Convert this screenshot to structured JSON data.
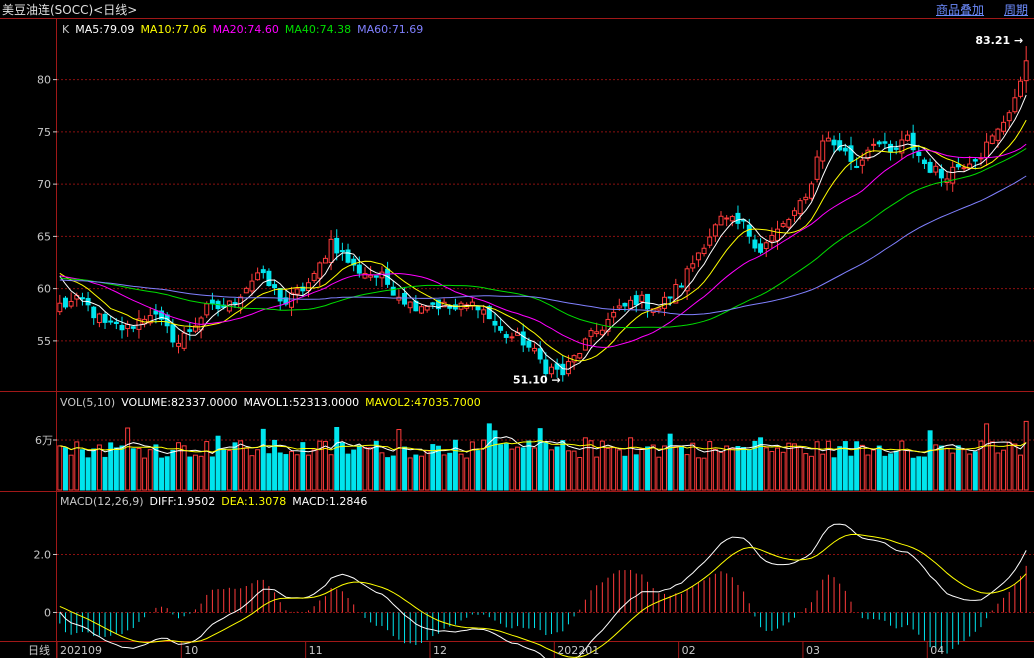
{
  "header": {
    "title": "美豆油连(SOCC)<日线>",
    "overlay_label": "商品叠加",
    "period_label": "周期"
  },
  "colors": {
    "up": "#ff3b3b",
    "down": "#00e5ee",
    "ma5": "#ffffff",
    "ma10": "#ffff00",
    "ma20": "#ff00ff",
    "ma40": "#00dd00",
    "ma60": "#8080ff",
    "grid": "#8b1010",
    "frame": "#a01818",
    "diff": "#ffffff",
    "dea": "#ffff00"
  },
  "legend": {
    "price": [
      {
        "key": "k",
        "text": "K",
        "color": "#c8c8c8"
      },
      {
        "key": "ma5",
        "text": "MA5:79.09",
        "color": "#ffffff"
      },
      {
        "key": "ma10",
        "text": "MA10:77.06",
        "color": "#ffff00"
      },
      {
        "key": "ma20",
        "text": "MA20:74.60",
        "color": "#ff00ff"
      },
      {
        "key": "ma40",
        "text": "MA40:74.38",
        "color": "#00dd00"
      },
      {
        "key": "ma60",
        "text": "MA60:71.69",
        "color": "#8080ff"
      }
    ],
    "volume": [
      {
        "key": "vol",
        "text": "VOL(5,10)",
        "color": "#c8c8c8"
      },
      {
        "key": "volume",
        "text": "VOLUME:82337.0000",
        "color": "#ffffff"
      },
      {
        "key": "mavol1",
        "text": "MAVOL1:52313.0000",
        "color": "#ffffff"
      },
      {
        "key": "mavol2",
        "text": "MAVOL2:47035.7000",
        "color": "#ffff00"
      }
    ],
    "macd": [
      {
        "key": "macd_name",
        "text": "MACD(12,26,9)",
        "color": "#c8c8c8"
      },
      {
        "key": "diff",
        "text": "DIFF:1.9502",
        "color": "#ffffff"
      },
      {
        "key": "dea",
        "text": "DEA:1.3078",
        "color": "#ffff00"
      },
      {
        "key": "macd",
        "text": "MACD:1.2846",
        "color": "#ffffff"
      }
    ]
  },
  "axes": {
    "price_ticks": [
      "80",
      "75",
      "70",
      "65",
      "60",
      "55"
    ],
    "volume_ticks": [
      "6万"
    ],
    "macd_ticks": [
      "2.0",
      "0"
    ],
    "period_label": "日线",
    "date_labels": [
      "202109",
      "10",
      "11",
      "12",
      "202201",
      "02",
      "03",
      "04"
    ]
  },
  "annotations": {
    "high": "83.21",
    "low": "51.10"
  },
  "chart_data": {
    "type": "candlestick",
    "ylim_price": [
      50.3,
      85.8
    ],
    "ylim_volume": [
      0,
      90000
    ],
    "ylim_macd": [
      -0.95,
      3.5
    ],
    "date_tick_index": [
      0,
      22,
      44,
      66,
      88,
      110,
      132,
      154
    ],
    "indicator_last": {
      "ma5": 79.09,
      "ma10": 77.06,
      "ma20": 74.6,
      "ma40": 74.38,
      "ma60": 71.69,
      "volume": 82337,
      "mavol1": 52313,
      "mavol2": 47035.7,
      "diff": 1.9502,
      "dea": 1.3078,
      "macd": 1.2846
    },
    "path_points": [
      [
        0,
        58.4
      ],
      [
        4,
        58.8
      ],
      [
        8,
        56.5
      ],
      [
        12,
        56.2
      ],
      [
        16,
        57.8
      ],
      [
        21,
        54.8
      ],
      [
        26,
        58.0
      ],
      [
        30,
        58.4
      ],
      [
        35,
        61.5
      ],
      [
        40,
        58.6
      ],
      [
        45,
        61.0
      ],
      [
        48,
        64.6
      ],
      [
        52,
        62.0
      ],
      [
        57,
        61.0
      ],
      [
        62,
        58.5
      ],
      [
        66,
        58.6
      ],
      [
        70,
        58.0
      ],
      [
        74,
        58.6
      ],
      [
        78,
        55.8
      ],
      [
        82,
        55.0
      ],
      [
        86,
        52.5
      ],
      [
        89,
        51.9
      ],
      [
        93,
        54.8
      ],
      [
        98,
        57.5
      ],
      [
        102,
        59.0
      ],
      [
        106,
        58.2
      ],
      [
        110,
        60.5
      ],
      [
        114,
        64.5
      ],
      [
        117,
        66.5
      ],
      [
        121,
        66.0
      ],
      [
        124,
        63.8
      ],
      [
        128,
        66.0
      ],
      [
        132,
        68.5
      ],
      [
        135,
        74.5
      ],
      [
        138,
        73.5
      ],
      [
        141,
        71.8
      ],
      [
        144,
        74.3
      ],
      [
        147,
        72.8
      ],
      [
        150,
        74.3
      ],
      [
        153,
        72.0
      ],
      [
        156,
        70.8
      ],
      [
        159,
        71.8
      ],
      [
        163,
        73.0
      ],
      [
        166,
        75.0
      ],
      [
        169,
        78.3
      ],
      [
        171,
        80.3
      ]
    ],
    "high_low": {
      "high": {
        "value": 83.21,
        "index": 171
      },
      "low": {
        "value": 51.1,
        "index": 89
      }
    }
  }
}
